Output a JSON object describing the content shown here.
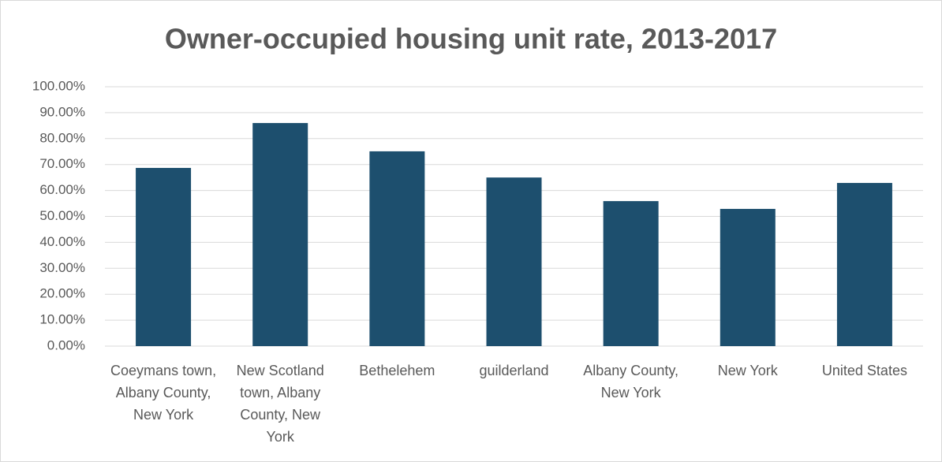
{
  "chart_data": {
    "type": "bar",
    "title": "Owner-occupied housing unit rate, 2013-2017",
    "categories": [
      "Coeymans town, Albany County, New York",
      "New Scotland town, Albany County, New York",
      "Bethelehem",
      "guilderland",
      "Albany County, New York",
      "New York",
      "United States"
    ],
    "values": [
      68.7,
      86.0,
      75.1,
      65.0,
      55.9,
      52.9,
      62.9
    ],
    "color": "#1d4f6e",
    "ylim": [
      0,
      100
    ],
    "yticks": [
      {
        "value": 0,
        "label": "0.00%"
      },
      {
        "value": 10,
        "label": "10.00%"
      },
      {
        "value": 20,
        "label": "20.00%"
      },
      {
        "value": 30,
        "label": "30.00%"
      },
      {
        "value": 40,
        "label": "40.00%"
      },
      {
        "value": 50,
        "label": "50.00%"
      },
      {
        "value": 60,
        "label": "60.00%"
      },
      {
        "value": 70,
        "label": "70.00%"
      },
      {
        "value": 80,
        "label": "80.00%"
      },
      {
        "value": 90,
        "label": "90.00%"
      },
      {
        "value": 100,
        "label": "100.00%"
      }
    ],
    "grid": true
  }
}
